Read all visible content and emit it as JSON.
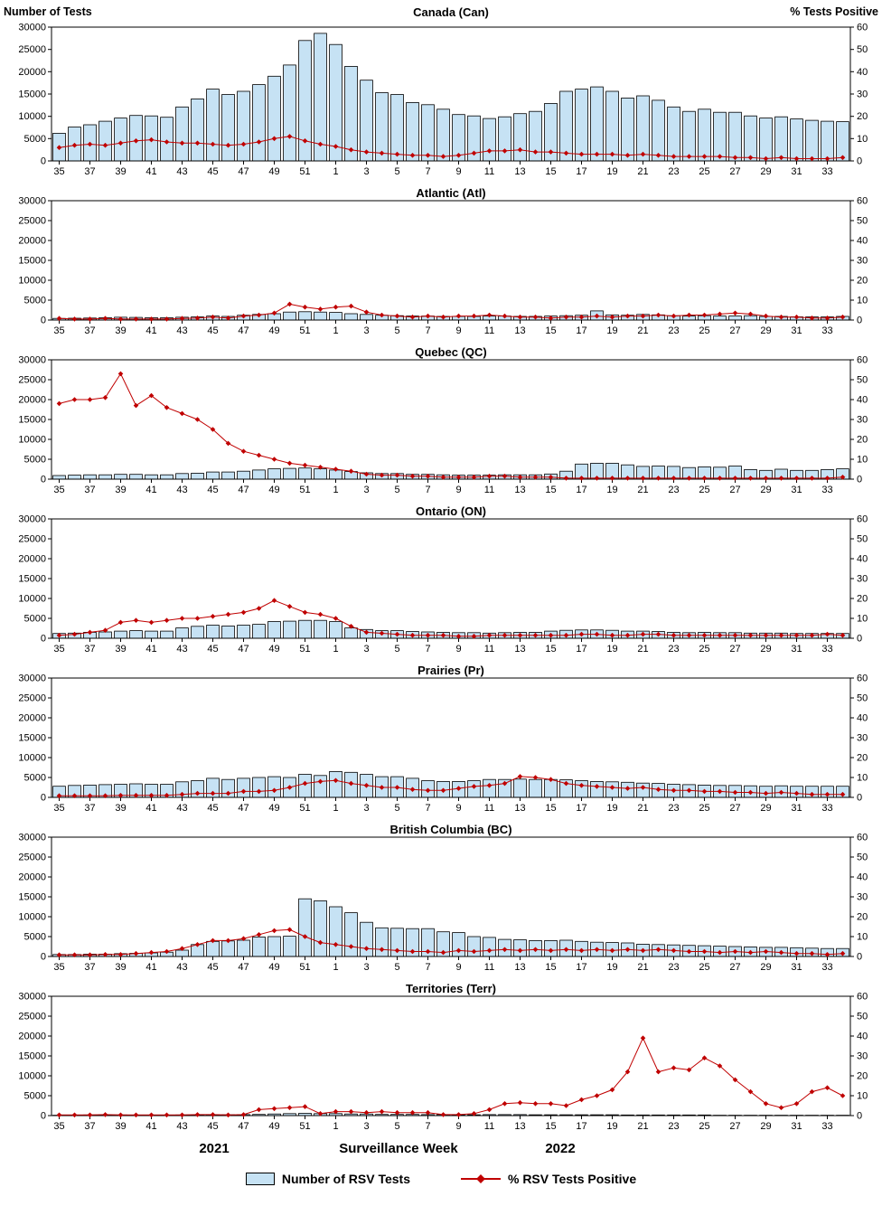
{
  "colors": {
    "bar_fill": "#C6E2F4",
    "bar_stroke": "#000000",
    "line": "#C00000",
    "frame": "#000000"
  },
  "chart_data": {
    "type": "bar+line multi-panel",
    "categories": [
      "35",
      "36",
      "37",
      "38",
      "39",
      "40",
      "41",
      "42",
      "43",
      "44",
      "45",
      "46",
      "47",
      "48",
      "49",
      "50",
      "51",
      "52",
      "1",
      "2",
      "3",
      "4",
      "5",
      "6",
      "7",
      "8",
      "9",
      "10",
      "11",
      "12",
      "13",
      "14",
      "15",
      "16",
      "17",
      "18",
      "19",
      "20",
      "21",
      "22",
      "23",
      "24",
      "25",
      "26",
      "27",
      "28",
      "29",
      "30",
      "31",
      "32",
      "33",
      "34"
    ],
    "left_axis": {
      "title": "Number of Tests",
      "range": [
        0,
        30000
      ],
      "ticks": [
        0,
        5000,
        10000,
        15000,
        20000,
        25000,
        30000
      ]
    },
    "right_axis": {
      "title": "% Tests Positive",
      "range": [
        0,
        60
      ],
      "ticks": [
        0,
        10,
        20,
        30,
        40,
        50,
        60
      ]
    },
    "x_axis": {
      "title": "Surveillance Week",
      "year_labels": [
        "2021",
        "2022"
      ]
    },
    "legend": [
      "Number of RSV Tests",
      "% RSV Tests Positive"
    ],
    "panels": [
      {
        "title": "Canada (Can)",
        "tests": [
          6200,
          7600,
          8100,
          8900,
          9600,
          10200,
          10100,
          9800,
          12100,
          13900,
          16100,
          14900,
          15600,
          17100,
          19000,
          21500,
          27000,
          28600,
          26100,
          21200,
          18100,
          15300,
          14900,
          13100,
          12600,
          11600,
          10400,
          10100,
          9500,
          9900,
          10600,
          11100,
          12900,
          15600,
          16100,
          16600,
          15600,
          14100,
          14600,
          13600,
          12100,
          11100,
          11600,
          10900,
          10900,
          10100,
          9600,
          9900,
          9400,
          9100,
          8900,
          8800
        ],
        "pct_positive": [
          6,
          7,
          7.5,
          7,
          8,
          9,
          9.5,
          8.5,
          8,
          8,
          7.5,
          7,
          7.5,
          8.5,
          10,
          11,
          9,
          7.5,
          6.5,
          5,
          4,
          3.5,
          3,
          2.5,
          2.5,
          2,
          2.5,
          3.5,
          4.5,
          4.5,
          5,
          4,
          4,
          3.5,
          3,
          3,
          3,
          2.5,
          3,
          2.5,
          2,
          2,
          2,
          2,
          1.5,
          1.5,
          1,
          1.5,
          1,
          1,
          1,
          1.5
        ]
      },
      {
        "title": "Atlantic (Atl)",
        "tests": [
          400,
          450,
          500,
          600,
          700,
          650,
          600,
          600,
          700,
          800,
          1000,
          900,
          1200,
          1400,
          1600,
          2000,
          2100,
          2000,
          1900,
          1600,
          1400,
          1200,
          1100,
          1000,
          1000,
          900,
          900,
          900,
          1000,
          1000,
          900,
          900,
          1000,
          1100,
          1200,
          2300,
          1300,
          1200,
          1400,
          1300,
          1100,
          1000,
          1100,
          1000,
          1000,
          1100,
          900,
          900,
          800,
          800,
          800,
          900
        ],
        "pct_positive": [
          0.8,
          0.5,
          0.5,
          0.8,
          0.5,
          0.5,
          0.5,
          0.5,
          0.8,
          1,
          1.5,
          1,
          2,
          2.5,
          3.5,
          8,
          6.5,
          5.5,
          6.5,
          7,
          4,
          2.5,
          2,
          1.5,
          2,
          1.5,
          2,
          2,
          2.5,
          2,
          1.5,
          1.5,
          1,
          1.5,
          1.5,
          2,
          1.5,
          2,
          2,
          2.5,
          2,
          2.5,
          2.5,
          3,
          3.5,
          3,
          2,
          1.5,
          1.5,
          1,
          1,
          1.5
        ]
      },
      {
        "title": "Quebec (QC)",
        "tests": [
          900,
          1000,
          1100,
          1100,
          1200,
          1200,
          1100,
          1100,
          1400,
          1500,
          1800,
          1800,
          2000,
          2300,
          2600,
          2700,
          2800,
          2600,
          2300,
          1900,
          1600,
          1400,
          1400,
          1200,
          1200,
          1100,
          1000,
          1000,
          1000,
          1100,
          1100,
          1100,
          1300,
          2000,
          3800,
          4000,
          4000,
          3600,
          3200,
          3300,
          3200,
          2900,
          3100,
          3000,
          3300,
          2400,
          2200,
          2500,
          2200,
          2200,
          2400,
          2600
        ],
        "pct_positive": [
          38,
          40,
          40,
          41,
          53,
          37,
          42,
          36,
          33,
          30,
          25,
          18,
          14,
          12,
          10,
          8,
          7,
          6,
          5,
          4,
          2.5,
          2,
          2,
          1.5,
          1.5,
          1,
          1,
          1,
          1.5,
          1.5,
          1,
          1,
          1,
          0.5,
          0.5,
          0.5,
          0.5,
          0.5,
          0.5,
          0.5,
          0.5,
          0.5,
          0.5,
          0.5,
          0.5,
          0.5,
          0.5,
          0.5,
          0.5,
          0.5,
          0.5,
          1
        ]
      },
      {
        "title": "Ontario (ON)",
        "tests": [
          1200,
          1300,
          1500,
          1600,
          1800,
          1900,
          1800,
          1800,
          2600,
          3000,
          3300,
          3100,
          3300,
          3500,
          4200,
          4300,
          4500,
          4500,
          4200,
          2600,
          2200,
          1900,
          1900,
          1700,
          1600,
          1500,
          1400,
          1400,
          1300,
          1400,
          1500,
          1500,
          1800,
          2000,
          2100,
          2100,
          2000,
          1800,
          1800,
          1700,
          1500,
          1400,
          1500,
          1400,
          1400,
          1300,
          1300,
          1300,
          1200,
          1200,
          1200,
          1200
        ],
        "pct_positive": [
          1.5,
          2,
          3,
          4,
          8,
          9,
          8,
          9,
          10,
          10,
          11,
          12,
          13,
          15,
          19,
          16,
          13,
          12,
          10,
          6,
          3,
          2.5,
          2,
          1.5,
          1.5,
          1.5,
          1,
          1,
          1.5,
          1.5,
          1.5,
          1.5,
          1.5,
          1.5,
          2,
          2,
          1.5,
          1.5,
          2,
          2,
          1.5,
          1.5,
          1.5,
          1.5,
          1.5,
          1.5,
          1.5,
          1.5,
          1.5,
          1.5,
          2,
          1.5
        ]
      },
      {
        "title": "Prairies (Pr)",
        "tests": [
          2800,
          3000,
          3100,
          3200,
          3300,
          3400,
          3300,
          3300,
          3900,
          4200,
          4800,
          4500,
          4800,
          5000,
          5200,
          5000,
          5800,
          5500,
          6500,
          6300,
          5800,
          5200,
          5200,
          4800,
          4200,
          4000,
          4000,
          4200,
          4500,
          4500,
          4600,
          4500,
          4500,
          4400,
          4200,
          4000,
          3900,
          3800,
          3600,
          3500,
          3300,
          3200,
          3100,
          3000,
          3000,
          2900,
          2800,
          2900,
          2800,
          2800,
          2800,
          2800
        ],
        "pct_positive": [
          0.8,
          0.8,
          0.8,
          0.8,
          1,
          1,
          1,
          1,
          1.5,
          2,
          2,
          2,
          3,
          3,
          3.5,
          5,
          7,
          8,
          8.5,
          7,
          6,
          5,
          5,
          4,
          3.5,
          3.5,
          4.5,
          5.5,
          6,
          7,
          10.5,
          10,
          9,
          7,
          6,
          5.5,
          5,
          4.5,
          5,
          4,
          3.5,
          3.5,
          3,
          3,
          2.5,
          2.5,
          2,
          2.5,
          2,
          1.5,
          1.5,
          1.5
        ]
      },
      {
        "title": "British Columbia (BC)",
        "tests": [
          500,
          500,
          600,
          600,
          700,
          800,
          900,
          1100,
          1600,
          3000,
          3800,
          3900,
          4100,
          4900,
          5000,
          5100,
          14500,
          14000,
          12500,
          11000,
          8600,
          7200,
          7100,
          7000,
          7000,
          6200,
          6000,
          5000,
          4800,
          4300,
          4200,
          4000,
          4000,
          4100,
          3800,
          3600,
          3500,
          3400,
          3100,
          3000,
          2900,
          2800,
          2700,
          2600,
          2500,
          2400,
          2300,
          2300,
          2200,
          2100,
          2000,
          2000
        ],
        "pct_positive": [
          0.8,
          0.8,
          0.8,
          1,
          1,
          1.5,
          2,
          2.5,
          4,
          6,
          8,
          8,
          9,
          11,
          13,
          13.5,
          10,
          7,
          6,
          5,
          4,
          3.5,
          3,
          2.5,
          2.5,
          2,
          3,
          2.5,
          3,
          3.5,
          3,
          3.5,
          3,
          3.5,
          3,
          3.5,
          3,
          3.5,
          3,
          3.5,
          3,
          2.5,
          2.5,
          2,
          2.5,
          2,
          2.5,
          2,
          1.5,
          1.5,
          1,
          1.5
        ]
      },
      {
        "title": "Territories (Terr)",
        "tests": [
          100,
          100,
          150,
          200,
          150,
          100,
          100,
          100,
          150,
          200,
          250,
          200,
          250,
          300,
          400,
          500,
          600,
          500,
          500,
          400,
          400,
          300,
          300,
          300,
          250,
          250,
          200,
          200,
          250,
          250,
          250,
          200,
          200,
          200,
          200,
          200,
          200,
          150,
          150,
          150,
          150,
          150,
          150,
          100,
          100,
          100,
          100,
          100,
          100,
          100,
          100,
          100
        ],
        "pct_positive": [
          0.3,
          0.3,
          0.3,
          0.5,
          0.3,
          0.3,
          0.3,
          0.3,
          0.3,
          0.5,
          0.5,
          0.3,
          0.5,
          3,
          3.5,
          4,
          4.5,
          1,
          2,
          2,
          1.5,
          2,
          1.5,
          1.5,
          1.5,
          0.5,
          0.5,
          1,
          3,
          6,
          6.5,
          6,
          6,
          5,
          8,
          10,
          13,
          22,
          39,
          22,
          24,
          23,
          29,
          25,
          18,
          12,
          6,
          4,
          6,
          12,
          14,
          10
        ]
      }
    ]
  }
}
